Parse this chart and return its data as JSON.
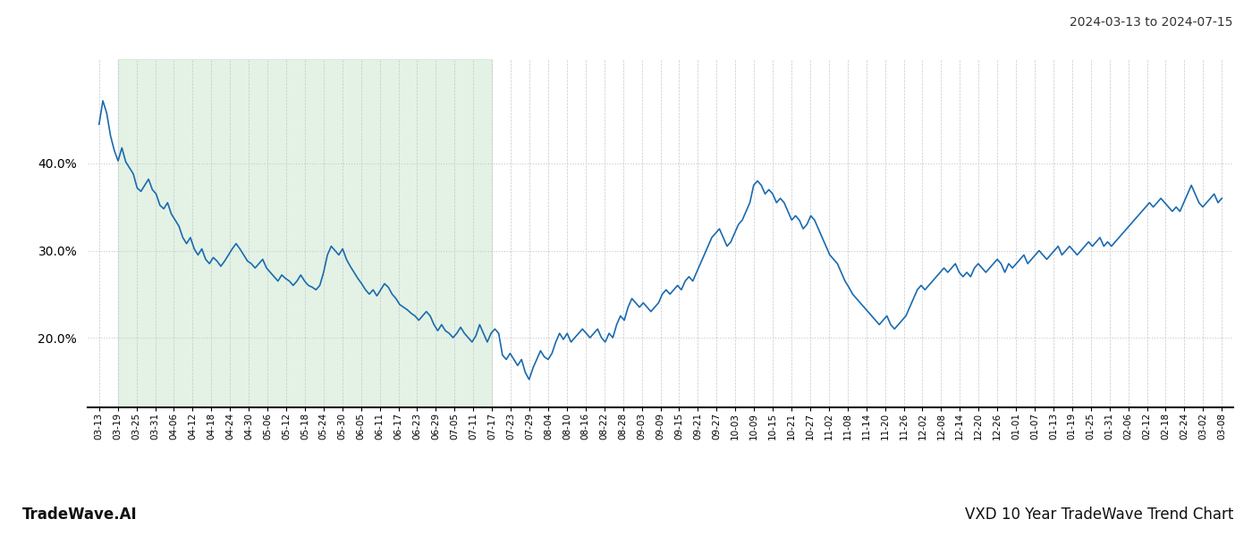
{
  "title_right": "2024-03-13 to 2024-07-15",
  "footer_left": "TradeWave.AI",
  "footer_right": "VXD 10 Year TradeWave Trend Chart",
  "line_color": "#1a6aaf",
  "line_width": 1.2,
  "shade_color": "#cce8d0",
  "shade_alpha": 0.55,
  "background_color": "#ffffff",
  "grid_color_v": "#c8c8c8",
  "grid_color_h": "#c8c8c8",
  "ylim": [
    12,
    52
  ],
  "yticks": [
    20.0,
    30.0,
    40.0
  ],
  "x_labels": [
    "03-13",
    "03-19",
    "03-25",
    "03-31",
    "04-06",
    "04-12",
    "04-18",
    "04-24",
    "04-30",
    "05-06",
    "05-12",
    "05-18",
    "05-24",
    "05-30",
    "06-05",
    "06-11",
    "06-17",
    "06-23",
    "06-29",
    "07-05",
    "07-11",
    "07-17",
    "07-23",
    "07-29",
    "08-04",
    "08-10",
    "08-16",
    "08-22",
    "08-28",
    "09-03",
    "09-09",
    "09-15",
    "09-21",
    "09-27",
    "10-03",
    "10-09",
    "10-15",
    "10-21",
    "10-27",
    "11-02",
    "11-08",
    "11-14",
    "11-20",
    "11-26",
    "12-02",
    "12-08",
    "12-14",
    "12-20",
    "12-26",
    "01-01",
    "01-07",
    "01-13",
    "01-19",
    "01-25",
    "01-31",
    "02-06",
    "02-12",
    "02-18",
    "02-24",
    "03-02",
    "03-08"
  ],
  "values": [
    44.5,
    47.2,
    45.8,
    43.2,
    41.5,
    40.3,
    41.8,
    40.2,
    39.5,
    38.8,
    37.2,
    36.8,
    37.5,
    38.2,
    37.0,
    36.5,
    35.2,
    34.8,
    35.5,
    34.2,
    33.5,
    32.8,
    31.5,
    30.8,
    31.5,
    30.2,
    29.5,
    30.2,
    29.0,
    28.5,
    29.2,
    28.8,
    28.2,
    28.8,
    29.5,
    30.2,
    30.8,
    30.2,
    29.5,
    28.8,
    28.5,
    28.0,
    28.5,
    29.0,
    28.0,
    27.5,
    27.0,
    26.5,
    27.2,
    26.8,
    26.5,
    26.0,
    26.5,
    27.2,
    26.5,
    26.0,
    25.8,
    25.5,
    26.0,
    27.5,
    29.5,
    30.5,
    30.0,
    29.5,
    30.2,
    29.0,
    28.2,
    27.5,
    26.8,
    26.2,
    25.5,
    25.0,
    25.5,
    24.8,
    25.5,
    26.2,
    25.8,
    25.0,
    24.5,
    23.8,
    23.5,
    23.2,
    22.8,
    22.5,
    22.0,
    22.5,
    23.0,
    22.5,
    21.5,
    20.8,
    21.5,
    20.8,
    20.5,
    20.0,
    20.5,
    21.2,
    20.5,
    20.0,
    19.5,
    20.2,
    21.5,
    20.5,
    19.5,
    20.5,
    21.0,
    20.5,
    18.0,
    17.5,
    18.2,
    17.5,
    16.8,
    17.5,
    16.0,
    15.2,
    16.5,
    17.5,
    18.5,
    17.8,
    17.5,
    18.2,
    19.5,
    20.5,
    19.8,
    20.5,
    19.5,
    20.0,
    20.5,
    21.0,
    20.5,
    20.0,
    20.5,
    21.0,
    20.0,
    19.5,
    20.5,
    20.0,
    21.5,
    22.5,
    22.0,
    23.5,
    24.5,
    24.0,
    23.5,
    24.0,
    23.5,
    23.0,
    23.5,
    24.0,
    25.0,
    25.5,
    25.0,
    25.5,
    26.0,
    25.5,
    26.5,
    27.0,
    26.5,
    27.5,
    28.5,
    29.5,
    30.5,
    31.5,
    32.0,
    32.5,
    31.5,
    30.5,
    31.0,
    32.0,
    33.0,
    33.5,
    34.5,
    35.5,
    37.5,
    38.0,
    37.5,
    36.5,
    37.0,
    36.5,
    35.5,
    36.0,
    35.5,
    34.5,
    33.5,
    34.0,
    33.5,
    32.5,
    33.0,
    34.0,
    33.5,
    32.5,
    31.5,
    30.5,
    29.5,
    29.0,
    28.5,
    27.5,
    26.5,
    25.8,
    25.0,
    24.5,
    24.0,
    23.5,
    23.0,
    22.5,
    22.0,
    21.5,
    22.0,
    22.5,
    21.5,
    21.0,
    21.5,
    22.0,
    22.5,
    23.5,
    24.5,
    25.5,
    26.0,
    25.5,
    26.0,
    26.5,
    27.0,
    27.5,
    28.0,
    27.5,
    28.0,
    28.5,
    27.5,
    27.0,
    27.5,
    27.0,
    28.0,
    28.5,
    28.0,
    27.5,
    28.0,
    28.5,
    29.0,
    28.5,
    27.5,
    28.5,
    28.0,
    28.5,
    29.0,
    29.5,
    28.5,
    29.0,
    29.5,
    30.0,
    29.5,
    29.0,
    29.5,
    30.0,
    30.5,
    29.5,
    30.0,
    30.5,
    30.0,
    29.5,
    30.0,
    30.5,
    31.0,
    30.5,
    31.0,
    31.5,
    30.5,
    31.0,
    30.5,
    31.0,
    31.5,
    32.0,
    32.5,
    33.0,
    33.5,
    34.0,
    34.5,
    35.0,
    35.5,
    35.0,
    35.5,
    36.0,
    35.5,
    35.0,
    34.5,
    35.0,
    34.5,
    35.5,
    36.5,
    37.5,
    36.5,
    35.5,
    35.0,
    35.5,
    36.0,
    36.5,
    35.5,
    36.0
  ],
  "shade_start_label": "03-19",
  "shade_end_label": "07-17"
}
